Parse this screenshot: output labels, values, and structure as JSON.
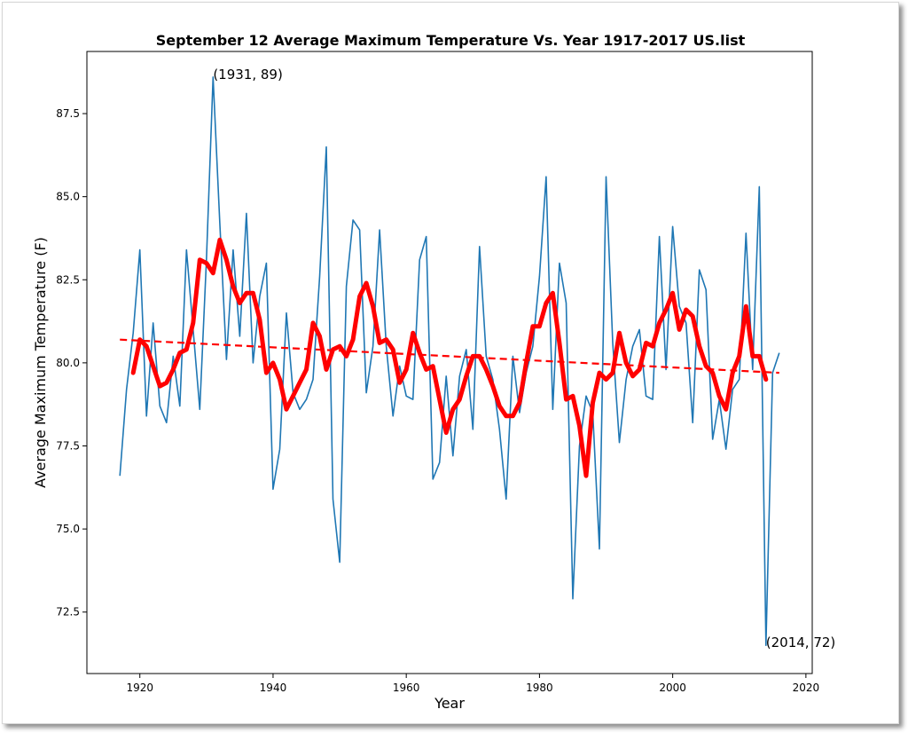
{
  "chart_data": {
    "type": "line",
    "title": "September 12 Average Maximum Temperature Vs. Year 1917-2017 US.list",
    "xlabel": "Year",
    "ylabel": "Average Maximum Temperature (F)",
    "xlim": [
      1912.05,
      2020.95
    ],
    "ylim": [
      70.65,
      89.37
    ],
    "xticks": [
      1920,
      1940,
      1960,
      1980,
      2000,
      2020
    ],
    "yticks": [
      72.5,
      75.0,
      77.5,
      80.0,
      82.5,
      85.0,
      87.5
    ],
    "xtick_labels": [
      "1920",
      "1940",
      "1960",
      "1980",
      "2000",
      "2020"
    ],
    "ytick_labels": [
      "72.5",
      "75.0",
      "77.5",
      "80.0",
      "82.5",
      "85.0",
      "87.5"
    ],
    "grid": false,
    "colors": {
      "annual": "#1f77b4",
      "smoothed": "#ff0000",
      "trend": "#ff0000"
    },
    "series": [
      {
        "style": "thin-line",
        "x": [
          1917,
          1918,
          1919,
          1920,
          1921,
          1922,
          1923,
          1924,
          1925,
          1926,
          1927,
          1928,
          1929,
          1930,
          1931,
          1932,
          1933,
          1934,
          1935,
          1936,
          1937,
          1938,
          1939,
          1940,
          1941,
          1942,
          1943,
          1944,
          1945,
          1946,
          1947,
          1948,
          1949,
          1950,
          1951,
          1952,
          1953,
          1954,
          1955,
          1956,
          1957,
          1958,
          1959,
          1960,
          1961,
          1962,
          1963,
          1964,
          1965,
          1966,
          1967,
          1968,
          1969,
          1970,
          1971,
          1972,
          1973,
          1974,
          1975,
          1976,
          1977,
          1978,
          1979,
          1980,
          1981,
          1982,
          1983,
          1984,
          1985,
          1986,
          1987,
          1988,
          1989,
          1990,
          1991,
          1992,
          1993,
          1994,
          1995,
          1996,
          1997,
          1998,
          1999,
          2000,
          2001,
          2002,
          2003,
          2004,
          2005,
          2006,
          2007,
          2008,
          2009,
          2010,
          2011,
          2012,
          2013,
          2014,
          2015,
          2016
        ],
        "y": [
          76.6,
          79.2,
          80.9,
          83.4,
          78.4,
          81.2,
          78.7,
          78.2,
          80.2,
          78.7,
          83.4,
          81.0,
          78.6,
          83.1,
          88.6,
          84.2,
          80.1,
          83.4,
          80.8,
          84.5,
          80.0,
          82.0,
          83.0,
          76.2,
          77.4,
          81.5,
          79.1,
          78.6,
          78.9,
          79.5,
          82.6,
          86.5,
          75.9,
          74.0,
          82.3,
          84.3,
          84.0,
          79.1,
          80.5,
          84.0,
          80.5,
          78.4,
          79.9,
          79.0,
          78.9,
          83.1,
          83.8,
          76.5,
          77.0,
          79.6,
          77.2,
          79.6,
          80.4,
          78.0,
          83.5,
          80.2,
          79.5,
          78.0,
          75.9,
          80.2,
          78.5,
          79.7,
          80.5,
          82.6,
          85.6,
          78.6,
          83.0,
          81.8,
          72.9,
          77.5,
          79.0,
          78.5,
          74.4,
          85.6,
          80.6,
          77.6,
          79.5,
          80.5,
          81.0,
          79.0,
          78.9,
          83.8,
          79.8,
          84.1,
          81.7,
          81.2,
          78.2,
          82.8,
          82.2,
          77.7,
          78.9,
          77.4,
          79.2,
          79.5,
          83.9,
          79.8,
          85.3,
          71.5,
          79.7,
          80.3
        ]
      },
      {
        "style": "thick-line",
        "x": [
          1919,
          1920,
          1921,
          1922,
          1923,
          1924,
          1925,
          1926,
          1927,
          1928,
          1929,
          1930,
          1931,
          1932,
          1933,
          1934,
          1935,
          1936,
          1937,
          1938,
          1939,
          1940,
          1941,
          1942,
          1943,
          1944,
          1945,
          1946,
          1947,
          1948,
          1949,
          1950,
          1951,
          1952,
          1953,
          1954,
          1955,
          1956,
          1957,
          1958,
          1959,
          1960,
          1961,
          1962,
          1963,
          1964,
          1965,
          1966,
          1967,
          1968,
          1969,
          1970,
          1971,
          1972,
          1973,
          1974,
          1975,
          1976,
          1977,
          1978,
          1979,
          1980,
          1981,
          1982,
          1983,
          1984,
          1985,
          1986,
          1987,
          1988,
          1989,
          1990,
          1991,
          1992,
          1993,
          1994,
          1995,
          1996,
          1997,
          1998,
          1999,
          2000,
          2001,
          2002,
          2003,
          2004,
          2005,
          2006,
          2007,
          2008,
          2009,
          2010,
          2011,
          2012,
          2013,
          2014
        ],
        "y": [
          79.7,
          80.7,
          80.5,
          79.9,
          79.3,
          79.4,
          79.8,
          80.3,
          80.4,
          81.2,
          83.1,
          83.0,
          82.7,
          83.7,
          83.1,
          82.3,
          81.8,
          82.1,
          82.1,
          81.3,
          79.7,
          80.0,
          79.5,
          78.6,
          79.0,
          79.4,
          79.8,
          81.2,
          80.8,
          79.8,
          80.4,
          80.5,
          80.2,
          80.7,
          82.0,
          82.4,
          81.7,
          80.6,
          80.7,
          80.4,
          79.4,
          79.8,
          80.9,
          80.3,
          79.8,
          79.9,
          78.9,
          77.9,
          78.6,
          78.9,
          79.6,
          80.2,
          80.2,
          79.8,
          79.3,
          78.7,
          78.4,
          78.4,
          78.8,
          80.0,
          81.1,
          81.1,
          81.8,
          82.1,
          80.6,
          78.9,
          79.0,
          78.1,
          76.6,
          78.8,
          79.7,
          79.5,
          79.7,
          80.9,
          80.0,
          79.6,
          79.8,
          80.6,
          80.5,
          81.2,
          81.6,
          82.1,
          81.0,
          81.6,
          81.4,
          80.5,
          79.9,
          79.7,
          79.0,
          78.6,
          79.7,
          80.2,
          81.7,
          80.2,
          80.2,
          79.5
        ]
      },
      {
        "style": "dashed-trend",
        "x": [
          1917,
          2016
        ],
        "y": [
          80.7,
          79.7
        ]
      }
    ],
    "annotations": [
      {
        "text": "(1931, 89)",
        "x": 1931,
        "y": 88.6
      },
      {
        "text": "(2014, 72)",
        "x": 2014,
        "y": 71.5
      }
    ]
  }
}
